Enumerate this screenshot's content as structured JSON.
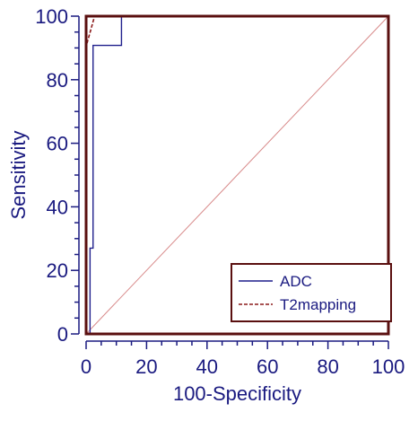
{
  "chart_data": {
    "type": "line",
    "xlabel": "100-Specificity",
    "ylabel": "Sensitivity",
    "xlim": [
      0,
      100
    ],
    "ylim": [
      0,
      100
    ],
    "x_ticks": [
      0,
      20,
      40,
      60,
      80,
      100
    ],
    "y_ticks": [
      0,
      20,
      40,
      60,
      80,
      100
    ],
    "minor_tick_step": 5,
    "grid": false,
    "legend_position": "bottom-right",
    "series": [
      {
        "name": "ADC",
        "style": "solid",
        "color": "#1f1f8c",
        "x": [
          0,
          1.3,
          1.3,
          2.3,
          2.3,
          11.7,
          11.7,
          100
        ],
        "y": [
          0,
          0,
          27,
          27,
          90.8,
          90.8,
          100,
          100
        ]
      },
      {
        "name": "T2mapping",
        "style": "dashed",
        "color": "#8b1a1a",
        "x": [
          0,
          0,
          1.2,
          2.8,
          2.8,
          100
        ],
        "y": [
          0,
          90.5,
          94.5,
          100,
          100,
          100
        ]
      }
    ],
    "reference_line": {
      "x": [
        0,
        100
      ],
      "y": [
        0,
        100
      ],
      "color": "#d88a8a"
    },
    "colors": {
      "frame": "#5a0f0f",
      "text": "#1a1a80",
      "ticks": "#1a1a80"
    }
  }
}
